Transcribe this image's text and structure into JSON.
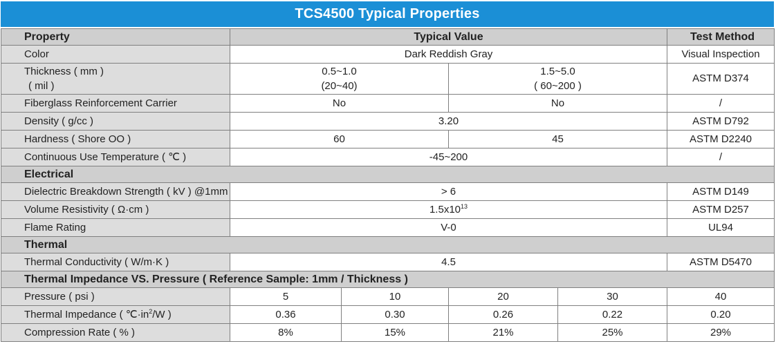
{
  "title": "TCS4500 Typical Properties",
  "header": {
    "property": "Property",
    "typical_value": "Typical Value",
    "test_method": "Test Method"
  },
  "rows": {
    "color": {
      "name": "Color",
      "value": "Dark Reddish Gray",
      "method": "Visual Inspection"
    },
    "thickness": {
      "name_line1": "Thickness ( mm )",
      "name_line2": "( mil )",
      "a_line1": "0.5~1.0",
      "a_line2": "(20~40)",
      "b_line1": "1.5~5.0",
      "b_line2": "( 60~200 )",
      "method": "ASTM D374"
    },
    "fiberglass": {
      "name": "Fiberglass Reinforcement Carrier",
      "a": "No",
      "b": "No",
      "method": "/"
    },
    "density": {
      "name": "Density ( g/cc )",
      "value": "3.20",
      "method": "ASTM D792"
    },
    "hardness": {
      "name": "Hardness ( Shore OO )",
      "a": "60",
      "b": "45",
      "method": "ASTM D2240"
    },
    "continuous_temp": {
      "name": "Continuous Use Temperature ( ℃ )",
      "value": "-45~200",
      "method": "/"
    }
  },
  "electrical": {
    "section": "Electrical",
    "dielectric": {
      "name": "Dielectric Breakdown Strength ( kV ) @1mm",
      "value": "> 6",
      "method": "ASTM D149"
    },
    "volume_resistivity": {
      "name": "Volume Resistivity ( Ω·cm )",
      "value_base": "1.5x10",
      "value_exp": "13",
      "method": "ASTM D257"
    },
    "flame": {
      "name": "Flame Rating",
      "value": "V-0",
      "method": "UL94"
    }
  },
  "thermal": {
    "section": "Thermal",
    "conductivity": {
      "name": "Thermal Conductivity ( W/m·K )",
      "value": "4.5",
      "method": "ASTM D5470"
    }
  },
  "impedance": {
    "section": "Thermal Impedance VS. Pressure ( Reference Sample: 1mm / Thickness )",
    "pressure": {
      "name": "Pressure ( psi )",
      "values": [
        "5",
        "10",
        "20",
        "30",
        "40"
      ]
    },
    "thermal_impedance": {
      "name_base": "Thermal Impedance ( ℃·in",
      "name_exp": "2",
      "name_tail": "/W )",
      "values": [
        "0.36",
        "0.30",
        "0.26",
        "0.22",
        "0.20"
      ]
    },
    "compression": {
      "name": "Compression Rate ( % )",
      "values": [
        "8%",
        "15%",
        "21%",
        "25%",
        "29%"
      ]
    }
  }
}
